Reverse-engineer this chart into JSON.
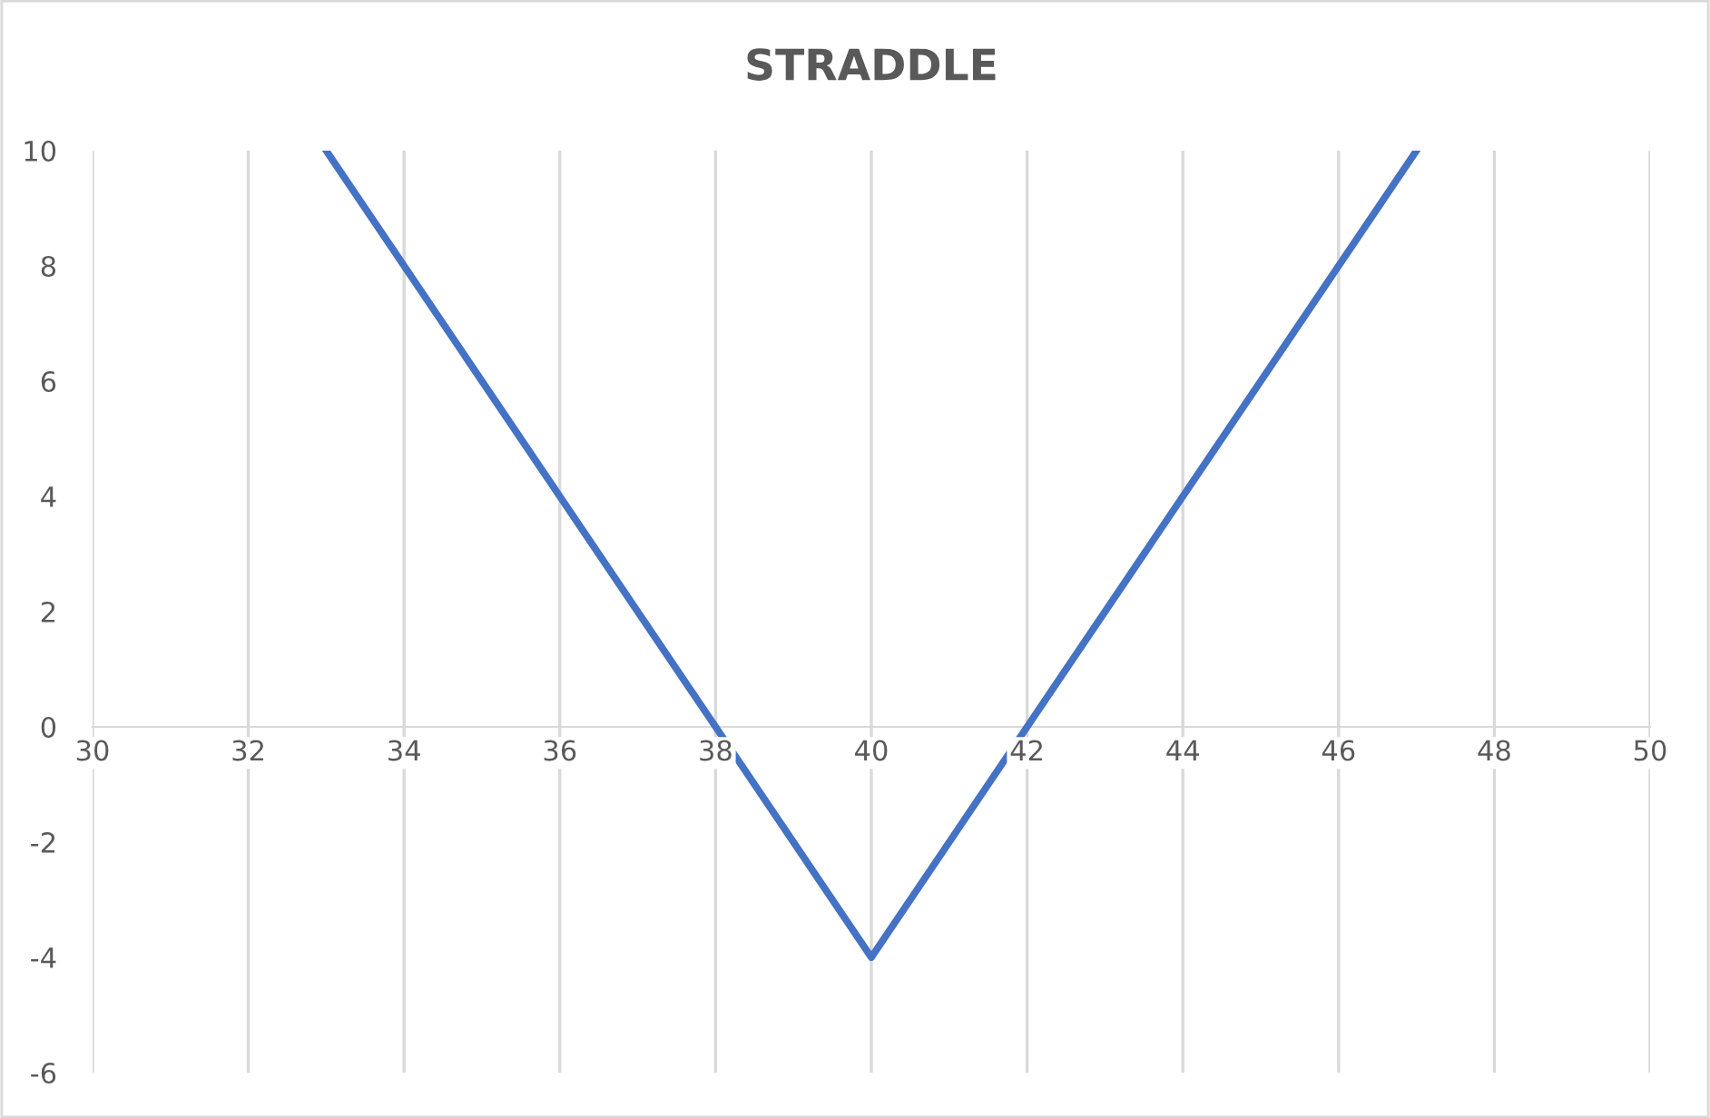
{
  "chart_data": {
    "type": "line",
    "title": "STRADDLE",
    "x": [
      33,
      40,
      47
    ],
    "series": [
      {
        "color": "#4472c4",
        "values": [
          10,
          -4,
          10
        ]
      }
    ],
    "xlim": [
      30,
      50
    ],
    "xticks": [
      30,
      32,
      34,
      36,
      38,
      40,
      42,
      44,
      46,
      48,
      50
    ],
    "ylim": [
      -6,
      10
    ],
    "yticks": [
      -6,
      -4,
      -2,
      0,
      2,
      4,
      6,
      8,
      10
    ],
    "grid": "x",
    "marker": "none",
    "line_style": "solid"
  }
}
